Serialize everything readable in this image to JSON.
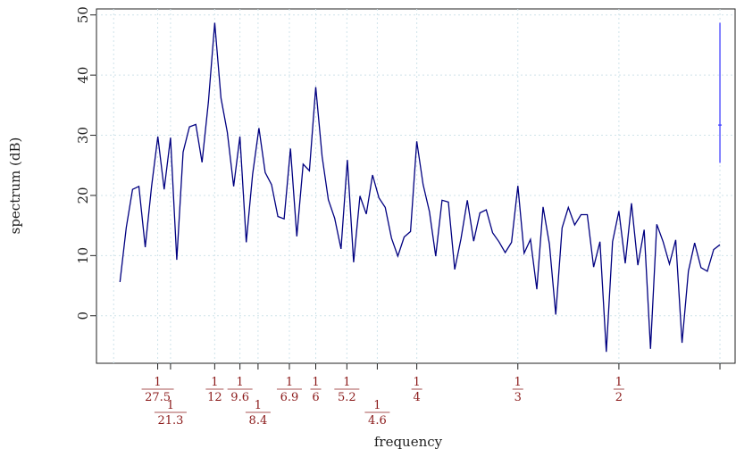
{
  "chart_data": {
    "type": "line",
    "xlabel": "frequency",
    "ylabel": "spectrum (dB)",
    "color": "#000080",
    "x": [
      0.0625,
      0.125,
      0.1875,
      0.25,
      0.3125,
      0.375,
      0.4375,
      0.5,
      0.5625,
      0.625,
      0.6875,
      0.75,
      0.8125,
      0.875,
      0.9375,
      1,
      1.0625,
      1.125,
      1.1875,
      1.25,
      1.3125,
      1.375,
      1.4375,
      1.5,
      1.5625,
      1.625,
      1.6875,
      1.75,
      1.8125,
      1.875,
      1.9375,
      2,
      2.0625,
      2.125,
      2.1875,
      2.25,
      2.3125,
      2.375,
      2.4375,
      2.5,
      2.5625,
      2.625,
      2.6875,
      2.75,
      2.8125,
      2.875,
      2.9375,
      3,
      3.0625,
      3.125,
      3.1875,
      3.25,
      3.3125,
      3.375,
      3.4375,
      3.5,
      3.5625,
      3.625,
      3.6875,
      3.75,
      3.8125,
      3.875,
      3.9375,
      4,
      4.0625,
      4.125,
      4.1875,
      4.25,
      4.3125,
      4.375,
      4.4375,
      4.5,
      4.5625,
      4.625,
      4.6875,
      4.75,
      4.8125,
      4.875,
      4.9375,
      5,
      5.0625,
      5.125,
      5.1875,
      5.25,
      5.3125,
      5.375,
      5.4375,
      5.5,
      5.5625,
      5.625,
      5.6875,
      5.75,
      5.8125,
      5.875,
      5.9375,
      6
    ],
    "values": [
      5.6,
      14.7,
      21,
      21.5,
      11.4,
      21.5,
      29.8,
      21,
      29.6,
      9.3,
      27.2,
      31.4,
      31.8,
      25.5,
      35.5,
      48.7,
      36.2,
      30.5,
      21.5,
      29.8,
      12.2,
      23.5,
      31.2,
      23.8,
      21.8,
      16.5,
      16.1,
      27.8,
      13.2,
      25.2,
      24.1,
      38,
      26.5,
      19.3,
      16.2,
      11.1,
      25.9,
      8.9,
      19.9,
      16.9,
      23.4,
      19.6,
      18,
      12.9,
      9.9,
      13.1,
      14,
      29,
      21.8,
      17.3,
      9.9,
      19.2,
      18.9,
      7.7,
      12.8,
      19.2,
      12.4,
      17.1,
      17.6,
      13.8,
      12.3,
      10.5,
      12.2,
      21.6,
      10.4,
      12.7,
      4.4,
      18.1,
      11.9,
      0.2,
      14.6,
      18,
      15.1,
      16.8,
      16.8,
      8.1,
      12.3,
      -6,
      12.3,
      17.4,
      8.7,
      18.7,
      8.4,
      14.3,
      -5.5,
      15.2,
      12.3,
      8.6,
      12.6,
      -4.5,
      7.4,
      12.1,
      8,
      7.4,
      11,
      11.8
    ],
    "ci_bar": {
      "x": 6,
      "lower": 25.4,
      "center": 31.7,
      "upper": 48.7,
      "color": "#3333ff"
    },
    "xlim": [
      -0.17,
      6.15
    ],
    "ylim": [
      -7.9,
      51
    ],
    "yticks": [
      0,
      10,
      20,
      30,
      40,
      50
    ],
    "xticks": [
      {
        "value": 0,
        "label": null
      },
      {
        "value": 0.436,
        "label": "1/27.5"
      },
      {
        "value": 0.563,
        "label": "1/21.3"
      },
      {
        "value": 1,
        "label": "1/12"
      },
      {
        "value": 1.25,
        "label": "1/9.6"
      },
      {
        "value": 1.429,
        "label": "1/8.4"
      },
      {
        "value": 1.739,
        "label": "1/6.9"
      },
      {
        "value": 2,
        "label": "1/6"
      },
      {
        "value": 2.308,
        "label": "1/5.2"
      },
      {
        "value": 2.609,
        "label": "1/4.6"
      },
      {
        "value": 3,
        "label": "1/4"
      },
      {
        "value": 4,
        "label": "1/3"
      },
      {
        "value": 5,
        "label": "1/2"
      },
      {
        "value": 6,
        "label": null
      }
    ],
    "grid": true,
    "tick_label_color": "#8b1a1a"
  }
}
